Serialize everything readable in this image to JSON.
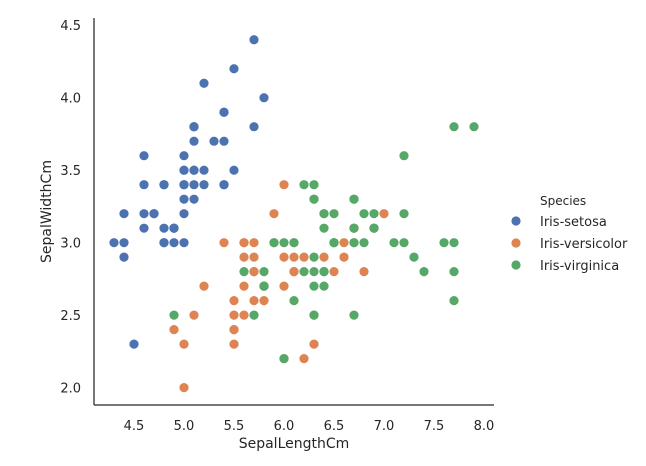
{
  "chart_data": {
    "type": "scatter",
    "xlabel": "SepalLengthCm",
    "ylabel": "SepalWidthCm",
    "xlim": [
      4.1,
      8.1
    ],
    "ylim": [
      1.88,
      4.55
    ],
    "x_ticks": [
      "4.5",
      "5.0",
      "5.5",
      "6.0",
      "6.5",
      "7.0",
      "7.5",
      "8.0"
    ],
    "y_ticks": [
      "2.0",
      "2.5",
      "3.0",
      "3.5",
      "4.0",
      "4.5"
    ],
    "legend_title": "Species",
    "legend_position": "right",
    "grid": false,
    "series": [
      {
        "name": "Iris-setosa",
        "color": "#4c72b0",
        "points": [
          [
            5.1,
            3.5
          ],
          [
            4.9,
            3.0
          ],
          [
            4.7,
            3.2
          ],
          [
            4.6,
            3.1
          ],
          [
            5.0,
            3.6
          ],
          [
            5.4,
            3.9
          ],
          [
            4.6,
            3.4
          ],
          [
            5.0,
            3.4
          ],
          [
            4.4,
            2.9
          ],
          [
            4.9,
            3.1
          ],
          [
            5.4,
            3.7
          ],
          [
            4.8,
            3.4
          ],
          [
            4.8,
            3.0
          ],
          [
            4.3,
            3.0
          ],
          [
            5.8,
            4.0
          ],
          [
            5.7,
            4.4
          ],
          [
            5.4,
            3.9
          ],
          [
            5.1,
            3.5
          ],
          [
            5.7,
            3.8
          ],
          [
            5.1,
            3.8
          ],
          [
            5.4,
            3.4
          ],
          [
            5.1,
            3.7
          ],
          [
            4.6,
            3.6
          ],
          [
            5.1,
            3.3
          ],
          [
            4.8,
            3.4
          ],
          [
            5.0,
            3.0
          ],
          [
            5.0,
            3.4
          ],
          [
            5.2,
            3.5
          ],
          [
            5.2,
            3.4
          ],
          [
            4.7,
            3.2
          ],
          [
            4.8,
            3.1
          ],
          [
            5.4,
            3.4
          ],
          [
            5.2,
            4.1
          ],
          [
            5.5,
            4.2
          ],
          [
            4.9,
            3.1
          ],
          [
            5.0,
            3.2
          ],
          [
            5.5,
            3.5
          ],
          [
            4.9,
            3.1
          ],
          [
            4.4,
            3.0
          ],
          [
            5.1,
            3.4
          ],
          [
            5.0,
            3.5
          ],
          [
            4.5,
            2.3
          ],
          [
            4.4,
            3.2
          ],
          [
            5.0,
            3.5
          ],
          [
            5.1,
            3.8
          ],
          [
            4.8,
            3.0
          ],
          [
            5.1,
            3.8
          ],
          [
            4.6,
            3.2
          ],
          [
            5.3,
            3.7
          ],
          [
            5.0,
            3.3
          ]
        ]
      },
      {
        "name": "Iris-versicolor",
        "color": "#dd8452",
        "points": [
          [
            7.0,
            3.2
          ],
          [
            6.4,
            3.2
          ],
          [
            6.9,
            3.1
          ],
          [
            5.5,
            2.3
          ],
          [
            6.5,
            2.8
          ],
          [
            5.7,
            2.8
          ],
          [
            6.3,
            3.3
          ],
          [
            4.9,
            2.4
          ],
          [
            6.6,
            2.9
          ],
          [
            5.2,
            2.7
          ],
          [
            5.0,
            2.0
          ],
          [
            5.9,
            3.0
          ],
          [
            6.0,
            2.2
          ],
          [
            6.1,
            2.9
          ],
          [
            5.6,
            2.9
          ],
          [
            6.7,
            3.1
          ],
          [
            5.6,
            3.0
          ],
          [
            5.8,
            2.7
          ],
          [
            6.2,
            2.2
          ],
          [
            5.6,
            2.5
          ],
          [
            5.9,
            3.2
          ],
          [
            6.1,
            2.8
          ],
          [
            6.3,
            2.5
          ],
          [
            6.1,
            2.8
          ],
          [
            6.4,
            2.9
          ],
          [
            6.6,
            3.0
          ],
          [
            6.8,
            2.8
          ],
          [
            6.7,
            3.0
          ],
          [
            6.0,
            2.9
          ],
          [
            5.7,
            2.6
          ],
          [
            5.5,
            2.4
          ],
          [
            5.5,
            2.4
          ],
          [
            5.8,
            2.7
          ],
          [
            6.0,
            2.7
          ],
          [
            5.4,
            3.0
          ],
          [
            6.0,
            3.4
          ],
          [
            6.7,
            3.1
          ],
          [
            6.3,
            2.3
          ],
          [
            5.6,
            3.0
          ],
          [
            5.5,
            2.5
          ],
          [
            5.5,
            2.6
          ],
          [
            6.1,
            3.0
          ],
          [
            5.8,
            2.6
          ],
          [
            5.0,
            2.3
          ],
          [
            5.6,
            2.7
          ],
          [
            5.7,
            3.0
          ],
          [
            5.7,
            2.9
          ],
          [
            6.2,
            2.9
          ],
          [
            5.1,
            2.5
          ],
          [
            5.7,
            2.8
          ]
        ]
      },
      {
        "name": "Iris-virginica",
        "color": "#55a868",
        "points": [
          [
            6.3,
            3.3
          ],
          [
            5.8,
            2.7
          ],
          [
            7.1,
            3.0
          ],
          [
            6.3,
            2.9
          ],
          [
            6.5,
            3.0
          ],
          [
            7.6,
            3.0
          ],
          [
            4.9,
            2.5
          ],
          [
            7.3,
            2.9
          ],
          [
            6.7,
            2.5
          ],
          [
            7.2,
            3.6
          ],
          [
            6.5,
            3.2
          ],
          [
            6.4,
            2.7
          ],
          [
            6.8,
            3.0
          ],
          [
            5.7,
            2.5
          ],
          [
            5.8,
            2.8
          ],
          [
            6.4,
            3.2
          ],
          [
            6.5,
            3.0
          ],
          [
            7.7,
            3.8
          ],
          [
            7.7,
            2.6
          ],
          [
            6.0,
            2.2
          ],
          [
            6.9,
            3.2
          ],
          [
            5.6,
            2.8
          ],
          [
            7.7,
            2.8
          ],
          [
            6.3,
            2.7
          ],
          [
            6.7,
            3.3
          ],
          [
            7.2,
            3.2
          ],
          [
            6.2,
            2.8
          ],
          [
            6.1,
            3.0
          ],
          [
            6.4,
            2.8
          ],
          [
            7.2,
            3.0
          ],
          [
            7.4,
            2.8
          ],
          [
            7.9,
            3.8
          ],
          [
            6.4,
            2.8
          ],
          [
            6.3,
            2.8
          ],
          [
            6.1,
            2.6
          ],
          [
            7.7,
            3.0
          ],
          [
            6.3,
            3.4
          ],
          [
            6.4,
            3.1
          ],
          [
            6.0,
            3.0
          ],
          [
            6.9,
            3.1
          ],
          [
            6.7,
            3.1
          ],
          [
            6.9,
            3.1
          ],
          [
            5.8,
            2.7
          ],
          [
            6.8,
            3.2
          ],
          [
            6.7,
            3.3
          ],
          [
            6.7,
            3.0
          ],
          [
            6.3,
            2.5
          ],
          [
            6.5,
            3.0
          ],
          [
            6.2,
            3.4
          ],
          [
            5.9,
            3.0
          ]
        ]
      }
    ]
  }
}
